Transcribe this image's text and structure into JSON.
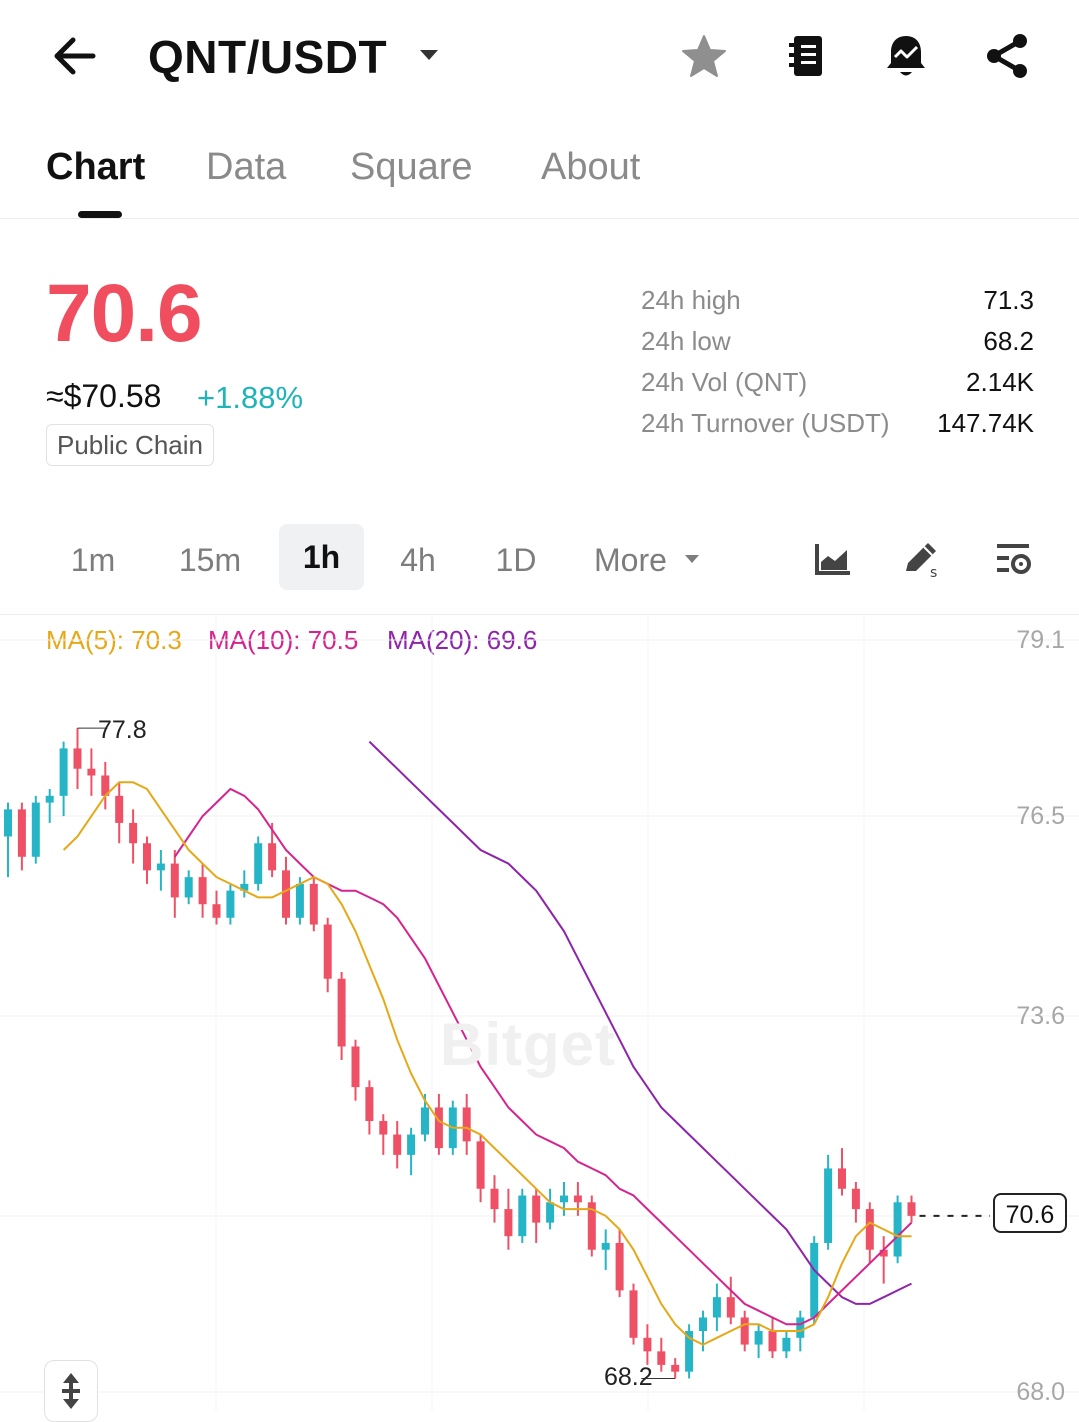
{
  "header": {
    "pair": "QNT/USDT",
    "icons": [
      "back-arrow-icon",
      "dropdown-caret-icon",
      "star-icon",
      "notebook-icon",
      "price-alert-bell-icon",
      "share-icon"
    ]
  },
  "tabs": [
    {
      "label": "Chart",
      "active": true
    },
    {
      "label": "Data",
      "active": false
    },
    {
      "label": "Square",
      "active": false
    },
    {
      "label": "About",
      "active": false
    }
  ],
  "price": {
    "last": "70.6",
    "usd_equiv": "≈$70.58",
    "change_pct": "+1.88%",
    "tag": "Public Chain",
    "color_down": "#f04e5e",
    "color_up": "#1fb5b8"
  },
  "stats": [
    {
      "label": "24h high",
      "value": "71.3"
    },
    {
      "label": "24h low",
      "value": "68.2"
    },
    {
      "label": "24h Vol (QNT)",
      "value": "2.14K"
    },
    {
      "label": "24h Turnover (USDT)",
      "value": "147.74K"
    }
  ],
  "intervals": [
    {
      "label": "1m",
      "active": false
    },
    {
      "label": "15m",
      "active": false
    },
    {
      "label": "1h",
      "active": true
    },
    {
      "label": "4h",
      "active": false
    },
    {
      "label": "1D",
      "active": false
    },
    {
      "label": "More",
      "active": false
    }
  ],
  "tools": [
    "indicator-chart-icon",
    "drawing-tool-icon",
    "chart-settings-icon"
  ],
  "ma_legend": [
    {
      "label": "MA(5): 70.3",
      "color": "#e6a817"
    },
    {
      "label": "MA(10): 70.5",
      "color": "#d6248f"
    },
    {
      "label": "MA(20): 69.6",
      "color": "#8e24aa"
    }
  ],
  "watermark": "Bitget",
  "chart_data": {
    "type": "candlestick",
    "y_axis_ticks": [
      "79.1",
      "76.5",
      "73.6",
      "68.0"
    ],
    "ylim": [
      68.0,
      79.1
    ],
    "high_marker": "77.8",
    "low_marker": "68.2",
    "last_price_label": "70.6",
    "up_color": "#26b5c6",
    "down_color": "#ee5166",
    "candles": [
      [
        76.2,
        76.7,
        75.6,
        76.6
      ],
      [
        76.6,
        76.7,
        75.7,
        75.9
      ],
      [
        75.9,
        76.8,
        75.8,
        76.7
      ],
      [
        76.7,
        76.9,
        76.4,
        76.8
      ],
      [
        76.8,
        77.6,
        76.5,
        77.5
      ],
      [
        77.5,
        77.8,
        76.9,
        77.2
      ],
      [
        77.2,
        77.5,
        76.8,
        77.1
      ],
      [
        77.1,
        77.3,
        76.6,
        76.8
      ],
      [
        76.8,
        77.0,
        76.1,
        76.4
      ],
      [
        76.4,
        76.6,
        75.8,
        76.1
      ],
      [
        76.1,
        76.2,
        75.5,
        75.7
      ],
      [
        75.7,
        76.0,
        75.4,
        75.8
      ],
      [
        75.8,
        76.0,
        75.0,
        75.3
      ],
      [
        75.3,
        75.7,
        75.2,
        75.6
      ],
      [
        75.6,
        75.8,
        75.0,
        75.2
      ],
      [
        75.2,
        75.4,
        74.9,
        75.0
      ],
      [
        75.0,
        75.5,
        74.9,
        75.4
      ],
      [
        75.4,
        75.7,
        75.3,
        75.5
      ],
      [
        75.5,
        76.2,
        75.4,
        76.1
      ],
      [
        76.1,
        76.4,
        75.6,
        75.7
      ],
      [
        75.7,
        75.9,
        74.9,
        75.0
      ],
      [
        75.0,
        75.6,
        74.9,
        75.5
      ],
      [
        75.5,
        75.6,
        74.8,
        74.9
      ],
      [
        74.9,
        75.0,
        73.9,
        74.1
      ],
      [
        74.1,
        74.2,
        72.9,
        73.1
      ],
      [
        73.1,
        73.2,
        72.3,
        72.5
      ],
      [
        72.5,
        72.6,
        71.8,
        72.0
      ],
      [
        72.0,
        72.1,
        71.5,
        71.8
      ],
      [
        71.8,
        72.0,
        71.3,
        71.5
      ],
      [
        71.5,
        71.9,
        71.2,
        71.8
      ],
      [
        71.8,
        72.4,
        71.7,
        72.2
      ],
      [
        72.2,
        72.4,
        71.5,
        71.6
      ],
      [
        71.6,
        72.3,
        71.5,
        72.2
      ],
      [
        72.2,
        72.4,
        71.5,
        71.7
      ],
      [
        71.7,
        71.8,
        70.8,
        71.0
      ],
      [
        71.0,
        71.2,
        70.5,
        70.7
      ],
      [
        70.7,
        71.0,
        70.1,
        70.3
      ],
      [
        70.3,
        71.0,
        70.2,
        70.9
      ],
      [
        70.9,
        71.0,
        70.2,
        70.5
      ],
      [
        70.5,
        71.0,
        70.4,
        70.8
      ],
      [
        70.8,
        71.1,
        70.6,
        70.9
      ],
      [
        70.9,
        71.1,
        70.6,
        70.8
      ],
      [
        70.8,
        70.9,
        70.0,
        70.1
      ],
      [
        70.1,
        70.4,
        69.8,
        70.2
      ],
      [
        70.2,
        70.4,
        69.4,
        69.5
      ],
      [
        69.5,
        69.6,
        68.7,
        68.8
      ],
      [
        68.8,
        69.0,
        68.4,
        68.6
      ],
      [
        68.6,
        68.8,
        68.3,
        68.4
      ],
      [
        68.4,
        68.5,
        68.2,
        68.3
      ],
      [
        68.3,
        69.0,
        68.2,
        68.9
      ],
      [
        68.9,
        69.2,
        68.6,
        69.1
      ],
      [
        69.1,
        69.6,
        68.9,
        69.4
      ],
      [
        69.4,
        69.7,
        69.0,
        69.1
      ],
      [
        69.1,
        69.2,
        68.6,
        68.7
      ],
      [
        68.7,
        69.0,
        68.5,
        68.9
      ],
      [
        68.9,
        69.1,
        68.5,
        68.6
      ],
      [
        68.6,
        68.9,
        68.5,
        68.8
      ],
      [
        68.8,
        69.2,
        68.6,
        69.1
      ],
      [
        69.1,
        70.3,
        69.0,
        70.2
      ],
      [
        70.2,
        71.5,
        70.1,
        71.3
      ],
      [
        71.3,
        71.6,
        70.9,
        71.0
      ],
      [
        71.0,
        71.1,
        70.5,
        70.7
      ],
      [
        70.7,
        70.8,
        69.9,
        70.1
      ],
      [
        70.1,
        70.3,
        69.6,
        70.0
      ],
      [
        70.0,
        70.9,
        69.9,
        70.8
      ],
      [
        70.8,
        70.9,
        70.5,
        70.6
      ]
    ],
    "ma5": [
      76.0,
      76.2,
      76.5,
      76.8,
      77.0,
      77.0,
      76.9,
      76.6,
      76.3,
      76.0,
      75.8,
      75.6,
      75.5,
      75.4,
      75.3,
      75.3,
      75.4,
      75.5,
      75.6,
      75.5,
      75.2,
      74.8,
      74.3,
      73.8,
      73.2,
      72.7,
      72.3,
      72.0,
      71.9,
      71.9,
      71.8,
      71.6,
      71.4,
      71.2,
      71.0,
      70.8,
      70.7,
      70.7,
      70.7,
      70.6,
      70.4,
      70.1,
      69.7,
      69.3,
      69.0,
      68.8,
      68.7,
      68.8,
      68.9,
      69.0,
      69.0,
      68.9,
      68.9,
      68.9,
      69.0,
      69.4,
      69.9,
      70.3,
      70.5,
      70.4,
      70.3,
      70.3
    ],
    "ma10": [
      75.9,
      76.2,
      76.5,
      76.7,
      76.9,
      76.8,
      76.6,
      76.3,
      76.0,
      75.8,
      75.6,
      75.5,
      75.4,
      75.4,
      75.3,
      75.2,
      75.0,
      74.7,
      74.4,
      74.0,
      73.6,
      73.2,
      72.8,
      72.5,
      72.2,
      72.0,
      71.8,
      71.7,
      71.6,
      71.4,
      71.3,
      71.2,
      71.0,
      70.9,
      70.7,
      70.5,
      70.3,
      70.1,
      69.9,
      69.7,
      69.5,
      69.3,
      69.2,
      69.1,
      69.0,
      69.0,
      69.1,
      69.3,
      69.5,
      69.7,
      69.9,
      70.1,
      70.3,
      70.5
    ],
    "ma20": [
      77.6,
      77.4,
      77.2,
      77.0,
      76.8,
      76.6,
      76.4,
      76.2,
      76.0,
      75.9,
      75.8,
      75.6,
      75.4,
      75.1,
      74.8,
      74.4,
      74.0,
      73.6,
      73.2,
      72.8,
      72.5,
      72.2,
      72.0,
      71.8,
      71.6,
      71.4,
      71.2,
      71.0,
      70.8,
      70.6,
      70.4,
      70.1,
      69.8,
      69.6,
      69.4,
      69.3,
      69.3,
      69.4,
      69.5,
      69.6
    ]
  }
}
